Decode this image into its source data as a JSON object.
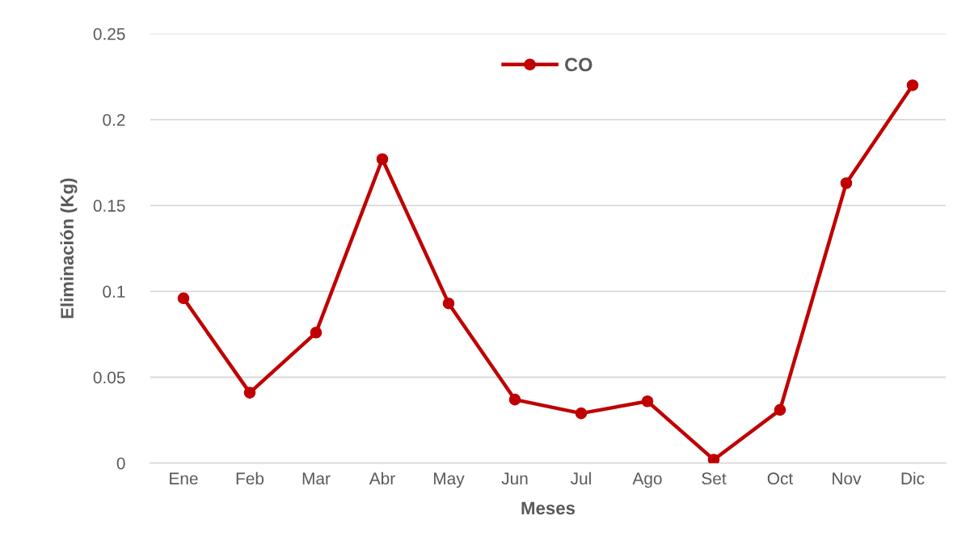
{
  "chart_data": {
    "type": "line",
    "xlabel": "Meses",
    "ylabel": "Eliminación (Kg)",
    "categories": [
      "Ene",
      "Feb",
      "Mar",
      "Abr",
      "May",
      "Jun",
      "Jul",
      "Ago",
      "Set",
      "Oct",
      "Nov",
      "Dic"
    ],
    "series": [
      {
        "name": "CO",
        "color": "#c00000",
        "values": [
          0.096,
          0.041,
          0.076,
          0.177,
          0.093,
          0.037,
          0.029,
          0.036,
          0.002,
          0.031,
          0.163,
          0.22
        ]
      }
    ],
    "ylim": [
      0,
      0.25
    ],
    "yticks": [
      0,
      0.05,
      0.1,
      0.15,
      0.2,
      0.25
    ],
    "grid": "y",
    "legend": "top",
    "marker": "circle",
    "line_style": "solid"
  }
}
